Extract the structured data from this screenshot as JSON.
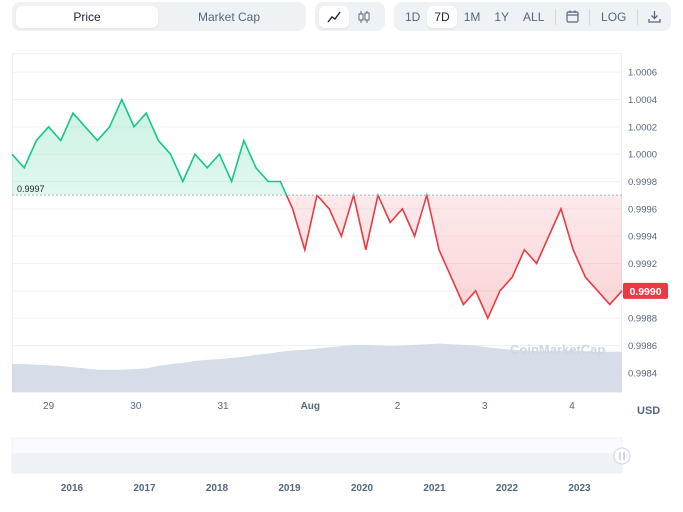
{
  "toolbar": {
    "price_tab": "Price",
    "market_cap_tab": "Market Cap",
    "line_icon": "line-chart-icon",
    "candle_icon": "candlestick-icon",
    "ranges": [
      "1D",
      "7D",
      "1M",
      "1Y",
      "ALL"
    ],
    "active_range": "7D",
    "calendar_icon": "calendar-icon",
    "log_label": "LOG",
    "download_icon": "download-icon"
  },
  "currency_label": "USD",
  "watermark": "CoinMarketCap",
  "colors": {
    "up": "#16c784",
    "down": "#ea3943",
    "volume": "#cfd6e4",
    "reference_line": "#a6b0c3"
  },
  "chart_data": {
    "type": "line",
    "reference_price": 0.9997,
    "reference_label": "0.9997",
    "current_price": 0.999,
    "current_label": "0.9990",
    "ylim": [
      0.99826,
      1.00074
    ],
    "y_ticks": [
      "1.0006",
      "1.0004",
      "1.0002",
      "1.0000",
      "0.9998",
      "0.9996",
      "0.9994",
      "0.9992",
      "0.9990",
      "0.9988",
      "0.9986",
      "0.9984"
    ],
    "x_ticks": [
      "29",
      "30",
      "31",
      "Aug",
      "2",
      "3",
      "4"
    ],
    "x": [
      0,
      0.02,
      0.04,
      0.06,
      0.08,
      0.1,
      0.12,
      0.14,
      0.16,
      0.18,
      0.2,
      0.22,
      0.24,
      0.26,
      0.28,
      0.3,
      0.32,
      0.34,
      0.36,
      0.38,
      0.4,
      0.42,
      0.44,
      0.46,
      0.48,
      0.5,
      0.52,
      0.54,
      0.56,
      0.58,
      0.6,
      0.62,
      0.64,
      0.66,
      0.68,
      0.7,
      0.72,
      0.74,
      0.76,
      0.78,
      0.8,
      0.82,
      0.84,
      0.86,
      0.88,
      0.9,
      0.92,
      0.94,
      0.96,
      0.98,
      1.0
    ],
    "y": [
      1.0,
      0.9999,
      1.0001,
      1.0002,
      1.0001,
      1.0003,
      1.0002,
      1.0001,
      1.0002,
      1.0004,
      1.0002,
      1.0003,
      1.0001,
      1.0,
      0.9998,
      1.0,
      0.9999,
      1.0,
      0.9998,
      1.0001,
      0.9999,
      0.9998,
      0.9998,
      0.9996,
      0.9993,
      0.9997,
      0.9996,
      0.9994,
      0.9997,
      0.9993,
      0.9997,
      0.9995,
      0.9996,
      0.9994,
      0.9997,
      0.9993,
      0.9991,
      0.9989,
      0.999,
      0.9988,
      0.999,
      0.9991,
      0.9993,
      0.9992,
      0.9994,
      0.9996,
      0.9993,
      0.9991,
      0.999,
      0.9989,
      0.999
    ],
    "volume": [
      0.45,
      0.45,
      0.44,
      0.43,
      0.42,
      0.4,
      0.38,
      0.36,
      0.36,
      0.36,
      0.37,
      0.38,
      0.42,
      0.45,
      0.47,
      0.5,
      0.52,
      0.53,
      0.55,
      0.57,
      0.6,
      0.62,
      0.65,
      0.67,
      0.68,
      0.7,
      0.72,
      0.74,
      0.76,
      0.76,
      0.75,
      0.74,
      0.75,
      0.76,
      0.77,
      0.78,
      0.77,
      0.76,
      0.75,
      0.72,
      0.7,
      0.68,
      0.67,
      0.66,
      0.66,
      0.67,
      0.67,
      0.66,
      0.65,
      0.65,
      0.65
    ],
    "navigator": {
      "x_ticks": [
        "2016",
        "2017",
        "2018",
        "2019",
        "2020",
        "2021",
        "2022",
        "2023"
      ]
    }
  }
}
